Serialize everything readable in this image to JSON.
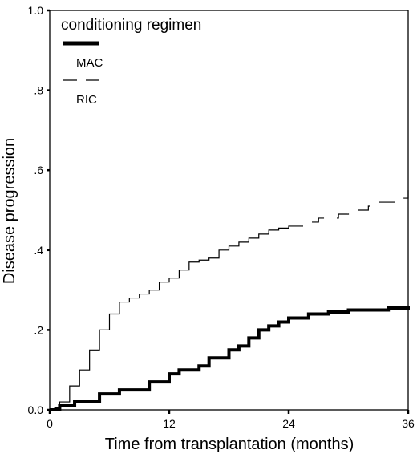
{
  "chart_data": {
    "type": "line",
    "xlabel": "Time from transplantation (months)",
    "ylabel": "Disease progression",
    "xlim": [
      0,
      36
    ],
    "ylim": [
      0,
      1.0
    ],
    "x_ticks": [
      0,
      12,
      24,
      36
    ],
    "x_tick_labels": [
      "0",
      "12",
      "24",
      "36"
    ],
    "y_ticks": [
      0,
      0.2,
      0.4,
      0.6,
      0.8,
      1.0
    ],
    "y_tick_labels": [
      "0.0",
      ".2",
      ".4",
      ".6",
      ".8",
      "1.0"
    ],
    "grid": false,
    "legend": {
      "title": "conditioning regimen",
      "placement": "top-left",
      "entries": [
        "MAC",
        "RIC"
      ]
    },
    "series": [
      {
        "name": "MAC",
        "style": "solid-thick",
        "color": "#000000",
        "x": [
          0,
          1,
          2.5,
          5,
          7,
          9,
          10,
          12,
          13,
          15,
          16,
          18,
          19,
          20,
          21,
          22,
          23,
          24,
          26,
          28,
          30,
          32,
          34,
          36
        ],
        "y": [
          0,
          0.01,
          0.02,
          0.04,
          0.05,
          0.05,
          0.07,
          0.09,
          0.1,
          0.11,
          0.13,
          0.15,
          0.16,
          0.18,
          0.2,
          0.21,
          0.22,
          0.23,
          0.24,
          0.245,
          0.25,
          0.25,
          0.255,
          0.26
        ]
      },
      {
        "name": "RIC",
        "style": "dashed-thin",
        "color": "#000000",
        "x": [
          0,
          0.5,
          1,
          2,
          3,
          4,
          5,
          6,
          7,
          8,
          9,
          10,
          11,
          12,
          13,
          14,
          15,
          16,
          17,
          18,
          19,
          20,
          21,
          22,
          23,
          24,
          25,
          26,
          27,
          28,
          29,
          30,
          31,
          32,
          33,
          34,
          35,
          36
        ],
        "y": [
          0,
          0.005,
          0.02,
          0.06,
          0.1,
          0.15,
          0.2,
          0.24,
          0.27,
          0.28,
          0.29,
          0.3,
          0.32,
          0.33,
          0.35,
          0.37,
          0.375,
          0.38,
          0.4,
          0.41,
          0.42,
          0.43,
          0.44,
          0.45,
          0.455,
          0.46,
          0.46,
          0.47,
          0.48,
          0.48,
          0.49,
          0.5,
          0.5,
          0.51,
          0.52,
          0.52,
          0.53,
          0.55
        ]
      }
    ]
  }
}
